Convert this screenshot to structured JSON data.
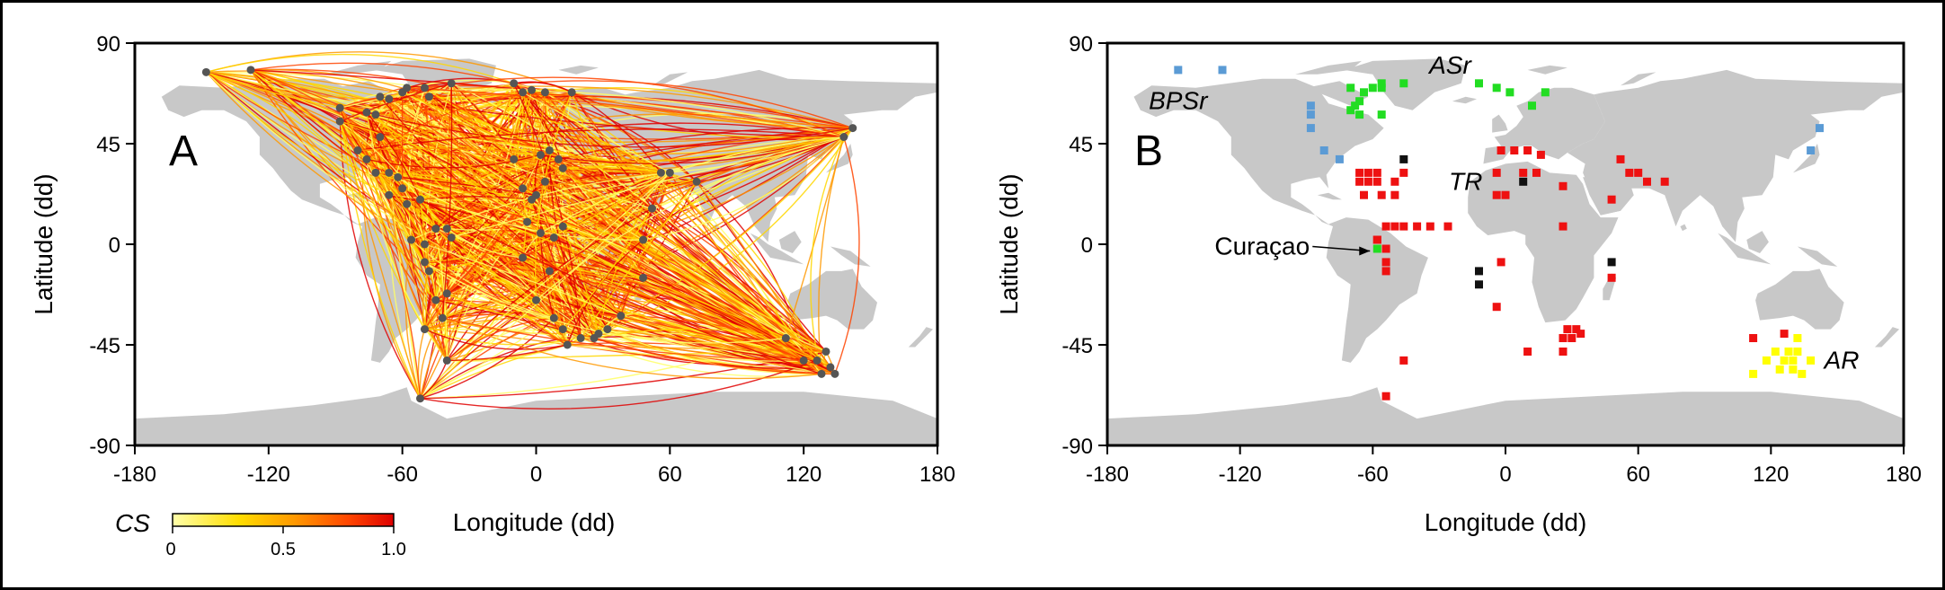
{
  "chart_data": [
    {
      "type": "network-map",
      "panel_label": "A",
      "xlabel": "Longitude (dd)",
      "ylabel": "Latitude (dd)",
      "xlim": [
        -180,
        180
      ],
      "ylim": [
        -90,
        90
      ],
      "xticks": [
        "-180",
        "-120",
        "-60",
        "0",
        "60",
        "120",
        "180"
      ],
      "yticks": [
        "90",
        "45",
        "0",
        "-45",
        "-90"
      ],
      "colorbar": {
        "label": "CS",
        "ticks": [
          "0",
          "0.5",
          "1.0"
        ],
        "colors": [
          "#ffff66",
          "#ffd700",
          "#ff9900",
          "#ff4400",
          "#e00000"
        ]
      },
      "land_color": "#c8c8c8",
      "node_color": "#555555",
      "nodes": [
        [
          -148,
          77
        ],
        [
          -128,
          78
        ],
        [
          -88,
          61
        ],
        [
          -88,
          55
        ],
        [
          -76,
          59
        ],
        [
          -72,
          58
        ],
        [
          -70,
          66
        ],
        [
          -66,
          65
        ],
        [
          -60,
          68
        ],
        [
          -58,
          70
        ],
        [
          -50,
          70
        ],
        [
          -48,
          66
        ],
        [
          -38,
          72
        ],
        [
          -10,
          72
        ],
        [
          -6,
          68
        ],
        [
          -2,
          69
        ],
        [
          4,
          68
        ],
        [
          16,
          68
        ],
        [
          -80,
          42
        ],
        [
          -76,
          38
        ],
        [
          -72,
          32
        ],
        [
          -66,
          32
        ],
        [
          -62,
          30
        ],
        [
          -60,
          25
        ],
        [
          -66,
          22
        ],
        [
          -58,
          18
        ],
        [
          -52,
          20
        ],
        [
          -45,
          7
        ],
        [
          -40,
          7
        ],
        [
          -38,
          3
        ],
        [
          -56,
          2
        ],
        [
          -50,
          0
        ],
        [
          -50,
          -8
        ],
        [
          -48,
          -12
        ],
        [
          -45,
          -25
        ],
        [
          -40,
          -22
        ],
        [
          -42,
          -33
        ],
        [
          -50,
          -38
        ],
        [
          -40,
          -52
        ],
        [
          -52,
          -69
        ],
        [
          -10,
          38
        ],
        [
          2,
          40
        ],
        [
          6,
          42
        ],
        [
          10,
          38
        ],
        [
          12,
          34
        ],
        [
          4,
          28
        ],
        [
          0,
          22
        ],
        [
          -2,
          20
        ],
        [
          -6,
          25
        ],
        [
          -4,
          10
        ],
        [
          2,
          5
        ],
        [
          8,
          3
        ],
        [
          12,
          8
        ],
        [
          -6,
          -6
        ],
        [
          6,
          -12
        ],
        [
          0,
          -25
        ],
        [
          8,
          -33
        ],
        [
          12,
          -38
        ],
        [
          20,
          -42
        ],
        [
          26,
          -42
        ],
        [
          28,
          -40
        ],
        [
          32,
          -38
        ],
        [
          38,
          -32
        ],
        [
          48,
          -15
        ],
        [
          48,
          2
        ],
        [
          52,
          16
        ],
        [
          56,
          32
        ],
        [
          60,
          32
        ],
        [
          72,
          28
        ],
        [
          112,
          -42
        ],
        [
          120,
          -52
        ],
        [
          126,
          -52
        ],
        [
          128,
          -58
        ],
        [
          130,
          -48
        ],
        [
          132,
          -55
        ],
        [
          134,
          -58
        ],
        [
          138,
          48
        ],
        [
          142,
          52
        ],
        [
          14,
          -45
        ],
        [
          -70,
          48
        ]
      ],
      "sample_links": 1400
    },
    {
      "type": "scatter-map",
      "panel_label": "B",
      "xlabel": "Longitude (dd)",
      "ylabel": "Latitude (dd)",
      "xlim": [
        -180,
        180
      ],
      "ylim": [
        -90,
        90
      ],
      "xticks": [
        "-180",
        "-120",
        "-60",
        "0",
        "60",
        "120",
        "180"
      ],
      "yticks": [
        "90",
        "45",
        "0",
        "-45",
        "-90"
      ],
      "land_color": "#c8c8c8",
      "annotations": [
        {
          "text": "BPSr",
          "italic": true,
          "lon": -148,
          "lat": 64
        },
        {
          "text": "ASr",
          "italic": true,
          "lon": -25,
          "lat": 80
        },
        {
          "text": "TR",
          "italic": true,
          "lon": -18,
          "lat": 28
        },
        {
          "text": "AR",
          "italic": true,
          "lon": 152,
          "lat": -52
        },
        {
          "text": "Curaçao",
          "italic": false,
          "lon": -110,
          "lat": -1,
          "arrow_to": [
            -58,
            -3
          ]
        }
      ],
      "series": [
        {
          "color": "#5b9bd5",
          "points": [
            [
              -148,
              78
            ],
            [
              -128,
              78
            ],
            [
              -88,
              62
            ],
            [
              -88,
              58
            ],
            [
              -88,
              52
            ],
            [
              -82,
              42
            ],
            [
              -75,
              38
            ],
            [
              142,
              52
            ],
            [
              138,
              42
            ]
          ]
        },
        {
          "color": "#22dd22",
          "points": [
            [
              -70,
              70
            ],
            [
              -64,
              68
            ],
            [
              -60,
              70
            ],
            [
              -56,
              70
            ],
            [
              -56,
              72
            ],
            [
              -66,
              64
            ],
            [
              -68,
              62
            ],
            [
              -70,
              60
            ],
            [
              -66,
              58
            ],
            [
              -56,
              58
            ],
            [
              -46,
              72
            ],
            [
              -12,
              72
            ],
            [
              -4,
              70
            ],
            [
              2,
              68
            ],
            [
              12,
              62
            ],
            [
              18,
              68
            ],
            [
              -58,
              -2
            ]
          ]
        },
        {
          "color": "#ee1111",
          "points": [
            [
              -66,
              32
            ],
            [
              -62,
              32
            ],
            [
              -58,
              32
            ],
            [
              -66,
              28
            ],
            [
              -62,
              28
            ],
            [
              -58,
              28
            ],
            [
              -50,
              28
            ],
            [
              -46,
              32
            ],
            [
              -64,
              22
            ],
            [
              -56,
              22
            ],
            [
              -50,
              22
            ],
            [
              -58,
              2
            ],
            [
              -54,
              8
            ],
            [
              -50,
              8
            ],
            [
              -46,
              8
            ],
            [
              -40,
              8
            ],
            [
              -34,
              8
            ],
            [
              -26,
              8
            ],
            [
              -54,
              -8
            ],
            [
              -54,
              -12
            ],
            [
              -54,
              -2
            ],
            [
              -58,
              2
            ],
            [
              -2,
              42
            ],
            [
              4,
              42
            ],
            [
              10,
              42
            ],
            [
              16,
              40
            ],
            [
              -4,
              32
            ],
            [
              8,
              32
            ],
            [
              14,
              32
            ],
            [
              -4,
              22
            ],
            [
              0,
              22
            ],
            [
              26,
              26
            ],
            [
              52,
              38
            ],
            [
              56,
              32
            ],
            [
              60,
              32
            ],
            [
              64,
              28
            ],
            [
              72,
              28
            ],
            [
              48,
              20
            ],
            [
              26,
              8
            ],
            [
              -2,
              -8
            ],
            [
              -4,
              -28
            ],
            [
              28,
              -38
            ],
            [
              32,
              -38
            ],
            [
              30,
              -42
            ],
            [
              26,
              -42
            ],
            [
              34,
              -40
            ],
            [
              26,
              -48
            ],
            [
              10,
              -48
            ],
            [
              -46,
              -52
            ],
            [
              -54,
              -68
            ],
            [
              112,
              -42
            ],
            [
              126,
              -40
            ],
            [
              48,
              -15
            ]
          ]
        },
        {
          "color": "#111111",
          "points": [
            [
              -46,
              38
            ],
            [
              8,
              28
            ],
            [
              -12,
              -12
            ],
            [
              -12,
              -18
            ],
            [
              48,
              -8
            ]
          ]
        },
        {
          "color": "#ffff00",
          "points": [
            [
              122,
              -48
            ],
            [
              118,
              -52
            ],
            [
              126,
              -52
            ],
            [
              130,
              -52
            ],
            [
              132,
              -48
            ],
            [
              128,
              -48
            ],
            [
              124,
              -56
            ],
            [
              130,
              -56
            ],
            [
              134,
              -58
            ],
            [
              132,
              -42
            ],
            [
              112,
              -58
            ],
            [
              138,
              -52
            ]
          ]
        }
      ]
    }
  ]
}
